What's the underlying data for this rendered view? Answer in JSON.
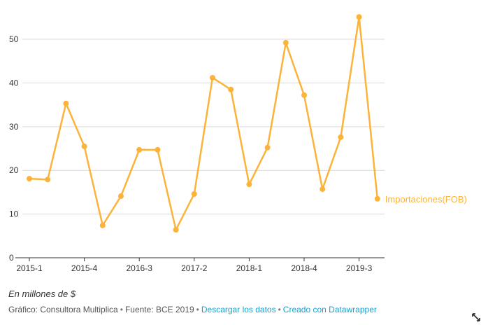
{
  "chart_data": {
    "type": "line",
    "categories": [
      "2015-1",
      null,
      null,
      "2015-4",
      null,
      null,
      "2016-3",
      null,
      null,
      "2017-2",
      null,
      null,
      "2018-1",
      null,
      null,
      "2018-4",
      null,
      null,
      "2019-3",
      null
    ],
    "series": [
      {
        "name": "Importaciones(FOB)",
        "color": "#fbb33a",
        "values": [
          18.1,
          17.9,
          35.3,
          25.5,
          7.4,
          14.1,
          24.7,
          24.7,
          6.4,
          14.6,
          41.2,
          38.5,
          16.8,
          25.2,
          49.2,
          37.2,
          15.7,
          27.6,
          55.1,
          13.5
        ]
      }
    ],
    "ylim": [
      0,
      56
    ],
    "yticks": [
      0,
      10,
      20,
      30,
      40,
      50
    ],
    "grid": true,
    "unit_note": "En millones de $",
    "footer": {
      "credit": "Gráfico: Consultora Multiplica",
      "source": "Fuente: BCE 2019",
      "download": "Descargar los datos",
      "made_with": "Creado con Datawrapper",
      "separator": "•"
    }
  }
}
